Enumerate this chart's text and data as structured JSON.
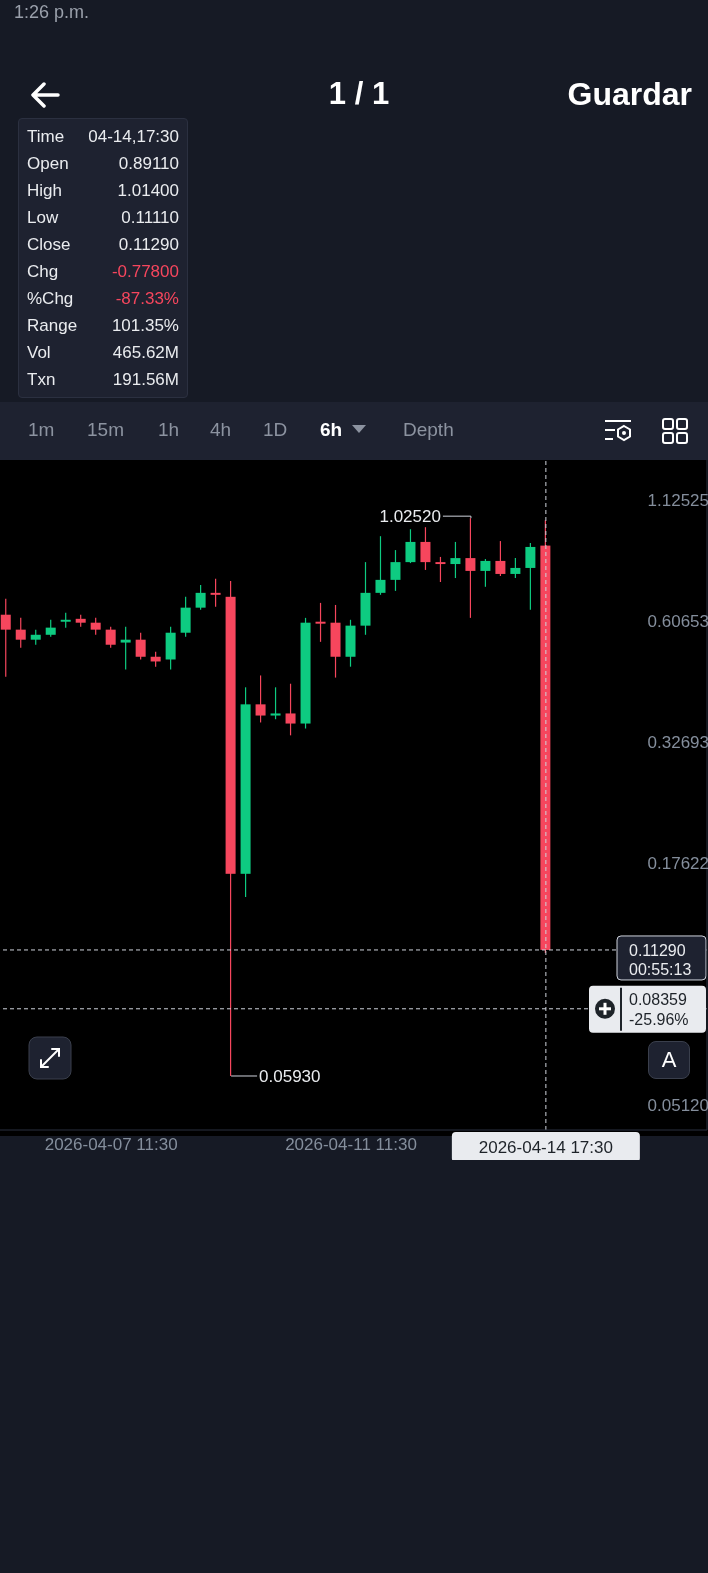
{
  "chart_data": {
    "type": "candlestick",
    "x": [
      "2026-04-05T17:30",
      "2026-04-05T23:30",
      "2026-04-06T05:30",
      "2026-04-06T11:30",
      "2026-04-06T17:30",
      "2026-04-06T23:30",
      "2026-04-07T05:30",
      "2026-04-07T11:30",
      "2026-04-07T17:30",
      "2026-04-07T23:30",
      "2026-04-08T05:30",
      "2026-04-08T11:30",
      "2026-04-08T17:30",
      "2026-04-08T23:30",
      "2026-04-09T05:30",
      "2026-04-09T11:30",
      "2026-04-09T17:30",
      "2026-04-09T23:30",
      "2026-04-10T05:30",
      "2026-04-10T11:30",
      "2026-04-10T17:30",
      "2026-04-10T23:30",
      "2026-04-11T05:30",
      "2026-04-11T11:30",
      "2026-04-11T17:30",
      "2026-04-11T23:30",
      "2026-04-12T05:30",
      "2026-04-12T11:30",
      "2026-04-12T17:30",
      "2026-04-12T23:30",
      "2026-04-13T05:30",
      "2026-04-13T11:30",
      "2026-04-13T17:30",
      "2026-04-13T23:30",
      "2026-04-14T05:30",
      "2026-04-14T11:30",
      "2026-04-14T17:30"
    ],
    "ohlc": [
      [
        0.626,
        0.679,
        0.456,
        0.58
      ],
      [
        0.58,
        0.616,
        0.529,
        0.551
      ],
      [
        0.551,
        0.58,
        0.537,
        0.565
      ],
      [
        0.565,
        0.61,
        0.559,
        0.586
      ],
      [
        0.604,
        0.632,
        0.586,
        0.61
      ],
      [
        0.613,
        0.626,
        0.589,
        0.601
      ],
      [
        0.601,
        0.616,
        0.565,
        0.58
      ],
      [
        0.58,
        0.589,
        0.529,
        0.537
      ],
      [
        0.543,
        0.589,
        0.473,
        0.551
      ],
      [
        0.551,
        0.571,
        0.498,
        0.505
      ],
      [
        0.505,
        0.518,
        0.48,
        0.493
      ],
      [
        0.498,
        0.589,
        0.473,
        0.571
      ],
      [
        0.571,
        0.686,
        0.559,
        0.649
      ],
      [
        0.649,
        0.729,
        0.642,
        0.7
      ],
      [
        0.7,
        0.752,
        0.652,
        0.693
      ],
      [
        0.686,
        0.744,
        0.0593,
        0.1666
      ],
      [
        0.1666,
        0.432,
        0.148,
        0.396
      ],
      [
        0.396,
        0.459,
        0.361,
        0.374
      ],
      [
        0.374,
        0.432,
        0.367,
        0.378
      ],
      [
        0.378,
        0.44,
        0.338,
        0.359
      ],
      [
        0.359,
        0.616,
        0.35,
        0.601
      ],
      [
        0.604,
        0.665,
        0.545,
        0.598
      ],
      [
        0.601,
        0.658,
        0.454,
        0.505
      ],
      [
        0.505,
        0.61,
        0.48,
        0.592
      ],
      [
        0.592,
        0.819,
        0.565,
        0.7
      ],
      [
        0.7,
        0.935,
        0.693,
        0.748
      ],
      [
        0.748,
        0.871,
        0.707,
        0.819
      ],
      [
        0.819,
        0.969,
        0.815,
        0.908
      ],
      [
        0.908,
        0.979,
        0.787,
        0.819
      ],
      [
        0.819,
        0.841,
        0.74,
        0.811
      ],
      [
        0.811,
        0.908,
        0.755,
        0.836
      ],
      [
        0.836,
        1.0252,
        0.616,
        0.783
      ],
      [
        0.783,
        0.832,
        0.722,
        0.824
      ],
      [
        0.824,
        0.912,
        0.763,
        0.771
      ],
      [
        0.771,
        0.836,
        0.755,
        0.795
      ],
      [
        0.795,
        0.903,
        0.642,
        0.885
      ],
      [
        0.8911,
        1.014,
        0.1111,
        0.1129
      ]
    ],
    "colors": [
      "#f6465d",
      "#f6465d",
      "#0ecb81",
      "#0ecb81",
      "#0ecb81",
      "#f6465d",
      "#f6465d",
      "#f6465d",
      "#0ecb81",
      "#f6465d",
      "#f6465d",
      "#0ecb81",
      "#0ecb81",
      "#0ecb81",
      "#f6465d",
      "#f6465d",
      "#0ecb81",
      "#f6465d",
      "#0ecb81",
      "#f6465d",
      "#0ecb81",
      "#f6465d",
      "#f6465d",
      "#0ecb81",
      "#0ecb81",
      "#0ecb81",
      "#0ecb81",
      "#0ecb81",
      "#f6465d",
      "#f6465d",
      "#0ecb81",
      "#f6465d",
      "#0ecb81",
      "#f6465d",
      "#0ecb81",
      "#0ecb81",
      "#f6465d"
    ],
    "xlim": [
      "2026-04-05T15:00",
      "2026-04-17T10:00"
    ],
    "xticks": [
      {
        "value": "2026-04-07T11:30",
        "label": "2026-04-07 11:30"
      },
      {
        "value": "2026-04-11T11:30",
        "label": "2026-04-11 11:30"
      }
    ],
    "ylim": [
      0.045,
      1.38
    ],
    "yticks": [
      1.12525,
      0.60653,
      0.32693,
      0.17622,
      {
        "value": 0.0512,
        "label": "0.05120"
      }
    ],
    "log": true,
    "ref_lines": [
      {
        "axis": "y",
        "value": 0.1129,
        "label": "0.11290",
        "line_style": "dashed",
        "color": "#cfd3dc"
      },
      {
        "axis": "y",
        "value": 0.08359,
        "label": "0.08359",
        "line_style": "dashed",
        "color": "#cfd3dc"
      },
      {
        "axis": "x",
        "value": "2026-04-14T17:30",
        "label": "2026-04-14 17:30",
        "line_style": "dashed",
        "color": "#cfd3dc"
      }
    ],
    "annotations": [
      "1:26 p.m.",
      "1 / 1",
      "Guardar",
      "1m",
      "15m",
      "1h",
      "4h",
      "1D",
      "6h",
      "Depth",
      "Time",
      "04-14,17:30",
      "Open",
      "0.89110",
      "High",
      "1.01400",
      "Low",
      "0.11110",
      "Close",
      "0.11290",
      "Chg",
      "-0.77800",
      "%Chg",
      "-87.33%",
      "Range",
      "101.35%",
      "Vol",
      "465.62M",
      "Txn",
      "191.56M",
      "00:55:13",
      "-25.96%",
      "A",
      {
        "text": "1.02520",
        "x": "2026-04-13T11:30",
        "y": 1.0252
      },
      {
        "text": "0.05930",
        "x": "2026-04-09T11:30",
        "y": 0.0593
      }
    ]
  }
}
